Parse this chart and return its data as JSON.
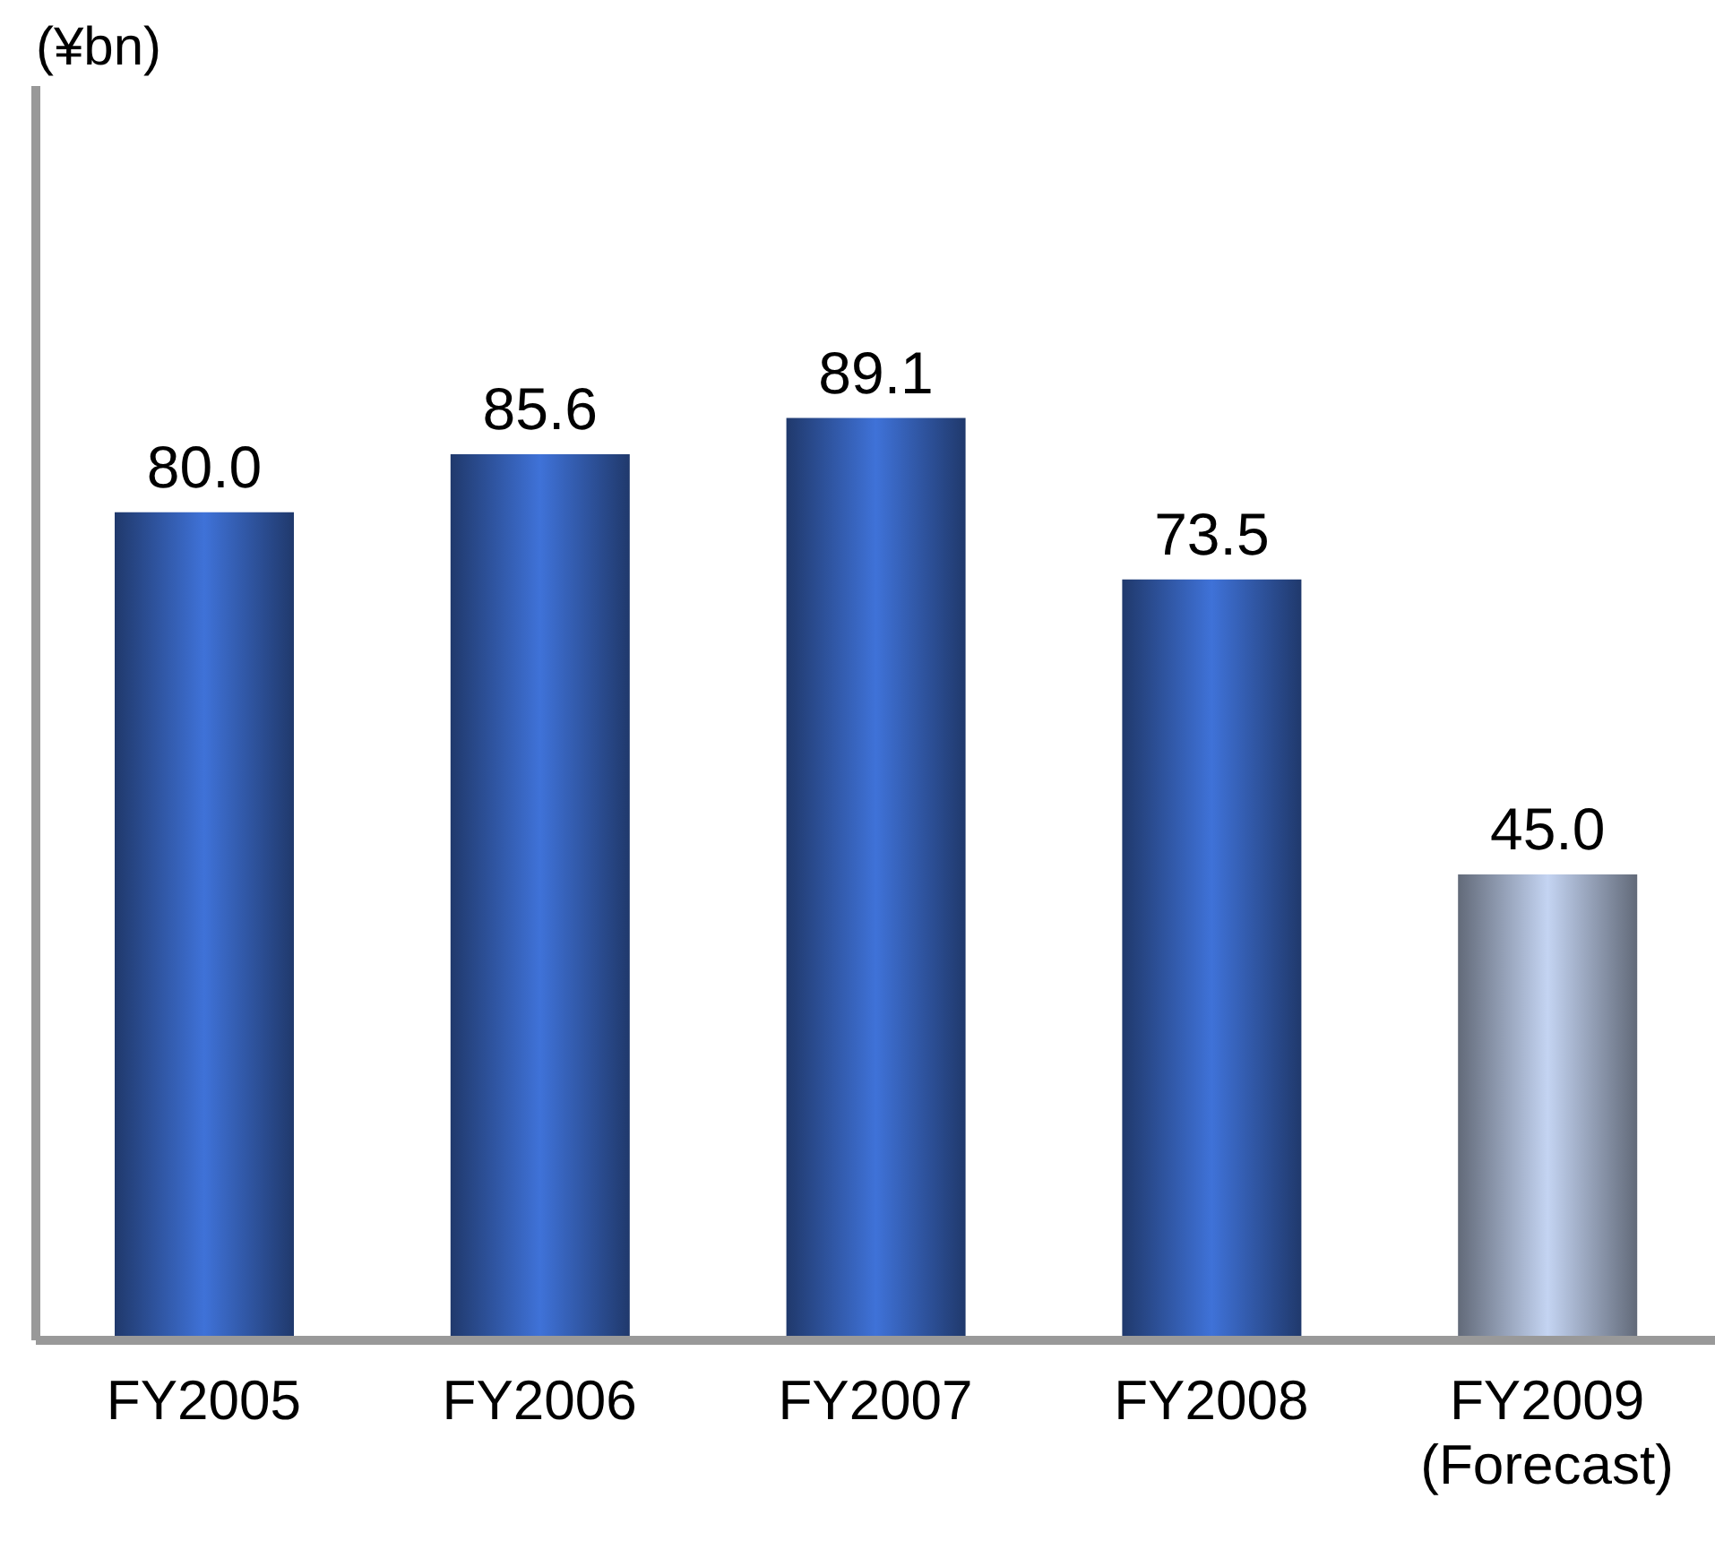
{
  "chart_data": {
    "type": "bar",
    "annotations": [
      "(¥bn)"
    ],
    "categories": [
      "FY2005",
      "FY2006",
      "FY2007",
      "FY2008",
      "FY2009 (Forecast)"
    ],
    "values": [
      80.0,
      85.6,
      89.1,
      73.5,
      45.0
    ],
    "colors": [
      "#3f72d8",
      "#3f72d8",
      "#3f72d8",
      "#3f72d8",
      "#c4d4f2"
    ],
    "value_labels": [
      "80.0",
      "85.6",
      "89.1",
      "73.5",
      "45.0"
    ],
    "grid": false,
    "legend": false
  }
}
